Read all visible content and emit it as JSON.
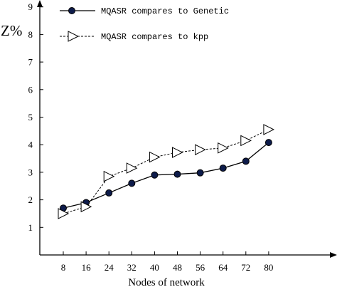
{
  "chart_data": {
    "type": "line",
    "xlabel": "Nodes of network",
    "ylabel": "Z%",
    "x": [
      8,
      16,
      24,
      32,
      40,
      48,
      56,
      64,
      72,
      80
    ],
    "xticks": [
      "8",
      "16",
      "24",
      "32",
      "40",
      "48",
      "56",
      "64",
      "72",
      "80"
    ],
    "yticks": [
      "1",
      "2",
      "3",
      "4",
      "5",
      "6",
      "7",
      "8",
      "9"
    ],
    "ylim": [
      0,
      9
    ],
    "grid": false,
    "legend": "top-left",
    "series": [
      {
        "name": "MQASR compares to Genetic",
        "values": [
          1.7,
          1.9,
          2.25,
          2.6,
          2.9,
          2.93,
          2.98,
          3.15,
          3.4,
          4.08
        ],
        "marker": "filled-circle",
        "line": "solid",
        "color": "#0d1b4a"
      },
      {
        "name": "MQASR compares to kpp",
        "values": [
          1.5,
          1.75,
          2.85,
          3.15,
          3.55,
          3.72,
          3.82,
          3.88,
          4.15,
          4.55
        ],
        "marker": "open-triangle",
        "line": "dashed",
        "color": "#000000"
      }
    ]
  }
}
